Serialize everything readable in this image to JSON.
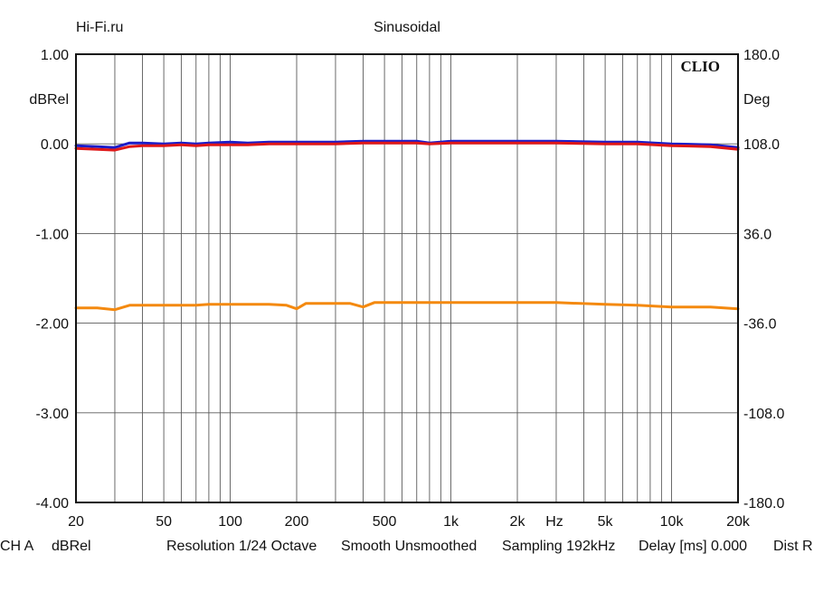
{
  "header": {
    "left": "Hi-Fi.ru",
    "center": "Sinusoidal",
    "brand": "CLIO"
  },
  "chart_data": {
    "type": "line",
    "x_scale": "log",
    "xlim": [
      20,
      20000
    ],
    "x_ticks": [
      {
        "value": 20,
        "label": "20"
      },
      {
        "value": 50,
        "label": "50"
      },
      {
        "value": 100,
        "label": "100"
      },
      {
        "value": 200,
        "label": "200"
      },
      {
        "value": 500,
        "label": "500"
      },
      {
        "value": 1000,
        "label": "1k"
      },
      {
        "value": 2000,
        "label": "2k"
      },
      {
        "value": 5000,
        "label": "5k"
      },
      {
        "value": 10000,
        "label": "10k"
      },
      {
        "value": 20000,
        "label": "20k"
      }
    ],
    "x_unit_label": "Hz",
    "ylabel_left": "dBRel",
    "ylim_left": [
      -4.0,
      1.0
    ],
    "y_ticks_left": [
      "1.00",
      "0.00",
      "-1.00",
      "-2.00",
      "-3.00",
      "-4.00"
    ],
    "ylabel_right": "Deg",
    "ylim_right": [
      -180.0,
      180.0
    ],
    "y_ticks_right": [
      "180.0",
      "108.0",
      "36.0",
      "-36.0",
      "-108.0",
      "-180.0"
    ],
    "grid": true,
    "series": [
      {
        "color": "#1c1cc8",
        "axis": "left",
        "x": [
          20,
          25,
          30,
          35,
          40,
          50,
          60,
          70,
          80,
          100,
          120,
          150,
          200,
          250,
          300,
          400,
          500,
          700,
          800,
          1000,
          2000,
          3000,
          5000,
          7000,
          10000,
          15000,
          20000
        ],
        "y": [
          -0.02,
          -0.03,
          -0.04,
          0.01,
          0.01,
          0.0,
          0.01,
          0.0,
          0.01,
          0.02,
          0.01,
          0.02,
          0.02,
          0.02,
          0.02,
          0.03,
          0.03,
          0.03,
          0.01,
          0.03,
          0.03,
          0.03,
          0.02,
          0.02,
          0.0,
          -0.01,
          -0.04
        ]
      },
      {
        "color": "#e01818",
        "axis": "left",
        "x": [
          20,
          25,
          30,
          35,
          40,
          50,
          60,
          70,
          80,
          100,
          120,
          150,
          200,
          250,
          300,
          400,
          500,
          700,
          800,
          1000,
          2000,
          3000,
          5000,
          7000,
          10000,
          15000,
          20000
        ],
        "y": [
          -0.05,
          -0.06,
          -0.07,
          -0.03,
          -0.02,
          -0.02,
          -0.01,
          -0.02,
          -0.01,
          -0.01,
          -0.01,
          0.0,
          0.0,
          0.0,
          0.0,
          0.01,
          0.01,
          0.01,
          0.0,
          0.01,
          0.01,
          0.01,
          0.0,
          0.0,
          -0.02,
          -0.03,
          -0.06
        ]
      },
      {
        "color": "#f4890f",
        "axis": "left",
        "x": [
          20,
          25,
          30,
          35,
          40,
          50,
          60,
          70,
          80,
          100,
          120,
          150,
          180,
          200,
          220,
          250,
          300,
          350,
          400,
          450,
          500,
          700,
          1000,
          2000,
          3000,
          5000,
          7000,
          10000,
          15000,
          20000
        ],
        "y": [
          -1.83,
          -1.83,
          -1.85,
          -1.8,
          -1.8,
          -1.8,
          -1.8,
          -1.8,
          -1.79,
          -1.79,
          -1.79,
          -1.79,
          -1.8,
          -1.84,
          -1.78,
          -1.78,
          -1.78,
          -1.78,
          -1.82,
          -1.77,
          -1.77,
          -1.77,
          -1.77,
          -1.77,
          -1.77,
          -1.79,
          -1.8,
          -1.82,
          -1.82,
          -1.84
        ]
      }
    ]
  },
  "footer": {
    "channel": "CH A",
    "unit": "dBRel",
    "resolution": "Resolution 1/24 Octave",
    "smooth": "Smooth Unsmoothed",
    "sampling": "Sampling 192kHz",
    "delay": "Delay [ms] 0.000",
    "dist": "Dist R"
  }
}
